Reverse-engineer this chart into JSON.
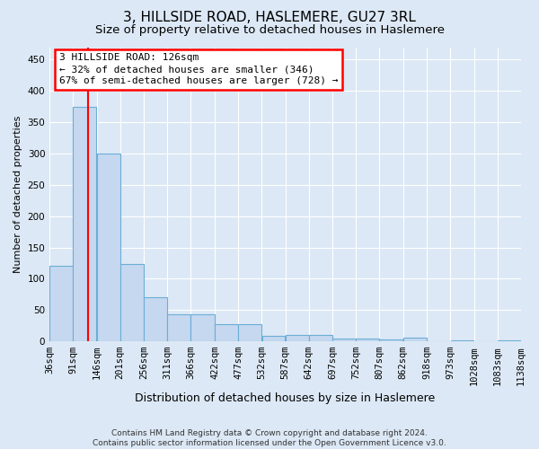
{
  "title": "3, HILLSIDE ROAD, HASLEMERE, GU27 3RL",
  "subtitle": "Size of property relative to detached houses in Haslemere",
  "xlabel": "Distribution of detached houses by size in Haslemere",
  "ylabel": "Number of detached properties",
  "bar_edges": [
    36,
    91,
    146,
    201,
    256,
    311,
    366,
    422,
    477,
    532,
    587,
    642,
    697,
    752,
    807,
    862,
    918,
    973,
    1028,
    1083,
    1138
  ],
  "bar_values": [
    120,
    375,
    300,
    123,
    70,
    43,
    43,
    28,
    28,
    8,
    10,
    10,
    5,
    5,
    3,
    6,
    0,
    2,
    0,
    2
  ],
  "bar_color": "#c5d8f0",
  "bar_edge_color": "#6baed6",
  "annotation_box_text": "3 HILLSIDE ROAD: 126sqm\n← 32% of detached houses are smaller (346)\n67% of semi-detached houses are larger (728) →",
  "redline_x": 126,
  "ylim": [
    0,
    470
  ],
  "yticks": [
    0,
    50,
    100,
    150,
    200,
    250,
    300,
    350,
    400,
    450
  ],
  "footer": "Contains HM Land Registry data © Crown copyright and database right 2024.\nContains public sector information licensed under the Open Government Licence v3.0.",
  "background_color": "#dce8f5",
  "plot_bg_color": "#dce8f5",
  "grid_color": "#ffffff",
  "title_fontsize": 11,
  "subtitle_fontsize": 9.5,
  "ylabel_fontsize": 8,
  "xlabel_fontsize": 9,
  "tick_fontsize": 7.5,
  "annotation_fontsize": 8,
  "footer_fontsize": 6.5
}
